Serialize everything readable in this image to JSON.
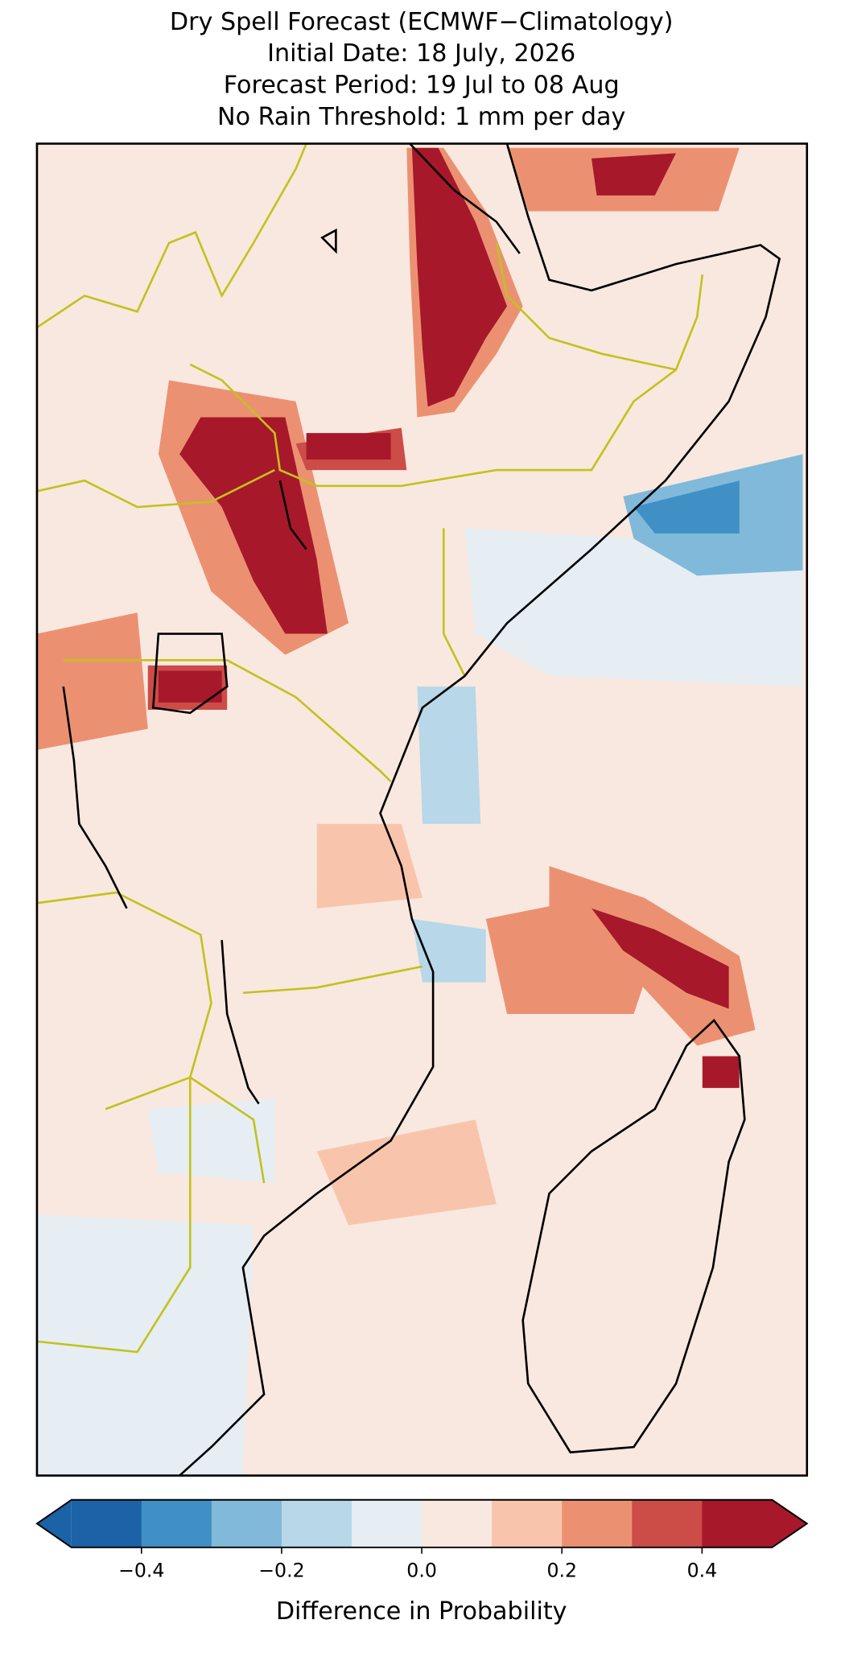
{
  "chart_data": {
    "type": "colormap",
    "title": [
      "Dry Spell Forecast (ECMWF−Climatology)",
      "Initial Date: 18 July, 2026",
      "Forecast Period: 19 Jul to 08 Aug",
      "No Rain Threshold: 1 mm per day"
    ],
    "colorbar": {
      "levels": [
        -0.5,
        -0.4,
        -0.3,
        -0.2,
        -0.1,
        0,
        0.1,
        0.2,
        0.3,
        0.4,
        0.5
      ],
      "colors": [
        "#1b62a6",
        "#4090c5",
        "#80b9da",
        "#b8d7e9",
        "#e6eef3",
        "#f9e8df",
        "#f8c5ac",
        "#eb9172",
        "#cc4c48",
        "#a7182a"
      ],
      "extend": "both",
      "ticks": [
        {
          "value": -0.4,
          "label": "−0.4"
        },
        {
          "value": -0.2,
          "label": "−0.2"
        },
        {
          "value": 0,
          "label": "0.0"
        },
        0.2,
        0.4
      ],
      "label": "Difference in Probability"
    }
  }
}
